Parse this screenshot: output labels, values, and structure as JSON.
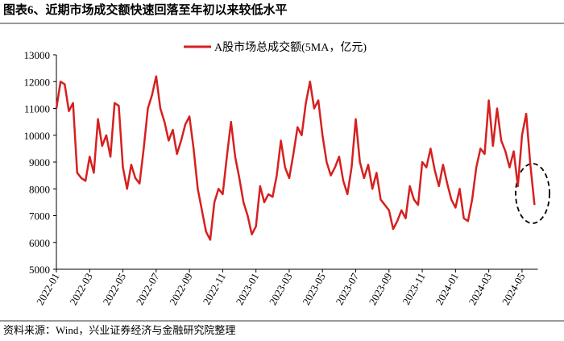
{
  "chart_data": {
    "type": "line",
    "title": "图表6、近期市场成交额快速回落至年初以来较低水平",
    "source": "资料来源：Wind，兴业证券经济与金融研究院整理",
    "categories": [
      "2022-01",
      null,
      null,
      null,
      null,
      null,
      null,
      null,
      "2022-03",
      null,
      null,
      null,
      null,
      null,
      null,
      null,
      "2022-05",
      null,
      null,
      null,
      null,
      null,
      null,
      null,
      "2022-07",
      null,
      null,
      null,
      null,
      null,
      null,
      null,
      "2022-09",
      null,
      null,
      null,
      null,
      null,
      null,
      null,
      "2022-11",
      null,
      null,
      null,
      null,
      null,
      null,
      null,
      "2023-01",
      null,
      null,
      null,
      null,
      null,
      null,
      null,
      "2023-03",
      null,
      null,
      null,
      null,
      null,
      null,
      null,
      "2023-05",
      null,
      null,
      null,
      null,
      null,
      null,
      null,
      "2023-07",
      null,
      null,
      null,
      null,
      null,
      null,
      null,
      "2023-09",
      null,
      null,
      null,
      null,
      null,
      null,
      null,
      "2023-11",
      null,
      null,
      null,
      null,
      null,
      null,
      null,
      "2024-01",
      null,
      null,
      null,
      null,
      null,
      null,
      null,
      "2024-03",
      null,
      null,
      null,
      null,
      null,
      null,
      null,
      "2024-05",
      null,
      null,
      null
    ],
    "series": [
      {
        "name": "A股市场总成交额(5MA，亿元)",
        "color": "#d62020",
        "values": [
          11000,
          12000,
          11900,
          10900,
          11200,
          8600,
          8400,
          8300,
          9200,
          8600,
          10600,
          9600,
          10000,
          9200,
          11200,
          11100,
          8800,
          8000,
          8900,
          8400,
          8200,
          9500,
          11000,
          11500,
          12200,
          11000,
          10500,
          9800,
          10200,
          9300,
          9800,
          10400,
          10700,
          9500,
          8000,
          7200,
          6400,
          6100,
          7500,
          8000,
          7800,
          9200,
          10500,
          9200,
          8400,
          7500,
          7000,
          6300,
          6600,
          8100,
          7500,
          7800,
          7700,
          8500,
          9800,
          8800,
          8400,
          9300,
          10300,
          10000,
          11200,
          12000,
          11000,
          11300,
          10000,
          9000,
          8500,
          8800,
          9200,
          8300,
          7800,
          8800,
          10600,
          9000,
          8400,
          8900,
          8000,
          8600,
          7600,
          7400,
          7200,
          6500,
          6800,
          7200,
          6900,
          8100,
          7600,
          7400,
          9000,
          8800,
          9500,
          8700,
          8100,
          8900,
          8200,
          7600,
          7300,
          8000,
          6900,
          6800,
          7600,
          8800,
          9500,
          9300,
          11300,
          9600,
          11000,
          9800,
          9400,
          8800,
          9400,
          8100,
          10000,
          10800,
          8900,
          7400
        ]
      }
    ],
    "ylim": [
      5000,
      13000
    ],
    "yticks": [
      5000,
      6000,
      7000,
      8000,
      9000,
      10000,
      11000,
      12000,
      13000
    ]
  }
}
